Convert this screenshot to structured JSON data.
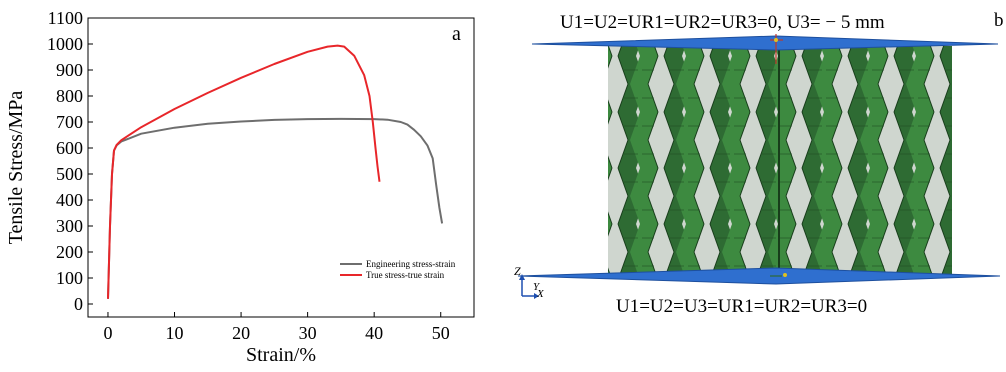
{
  "chart_data": {
    "type": "line",
    "panel_label": "a",
    "xlabel": "Strain/%",
    "ylabel": "Tensile Stress/MPa",
    "xlim": [
      -3,
      55
    ],
    "ylim": [
      -50,
      1100
    ],
    "x_ticks": [
      0,
      10,
      20,
      30,
      40,
      50
    ],
    "y_ticks": [
      0,
      100,
      200,
      300,
      400,
      500,
      600,
      700,
      800,
      900,
      1000,
      1100
    ],
    "grid": false,
    "legend_position": "lower-right",
    "series": [
      {
        "name": "Engineering stress-strain",
        "color": "#6e6e6e",
        "x": [
          0,
          0.3,
          0.6,
          0.9,
          1.3,
          2,
          5,
          10,
          15,
          20,
          25,
          30,
          35,
          40,
          42,
          44,
          45,
          46,
          47,
          48,
          48.8,
          49.3,
          49.8,
          50.2
        ],
        "y": [
          20,
          300,
          500,
          590,
          610,
          625,
          655,
          678,
          693,
          702,
          708,
          711,
          712,
          711,
          709,
          700,
          690,
          670,
          645,
          610,
          560,
          460,
          370,
          310
        ]
      },
      {
        "name": "True stress-true strain",
        "color": "#e8262a",
        "x": [
          0,
          0.3,
          0.6,
          0.9,
          1.3,
          2,
          5,
          10,
          15,
          20,
          25,
          30,
          33,
          34.5,
          35.5,
          37,
          38.5,
          39.3,
          39.8,
          40.2,
          40.5,
          40.8
        ],
        "y": [
          20,
          300,
          500,
          590,
          612,
          630,
          680,
          750,
          812,
          870,
          923,
          970,
          990,
          994,
          990,
          955,
          880,
          800,
          700,
          600,
          530,
          470
        ]
      }
    ]
  },
  "panel_b": {
    "label": "b",
    "top_bc": "U1=U2=UR1=UR2=UR3=0, U3= − 5 mm",
    "bottom_bc": "U1=U2=U3=UR1=UR2=UR3=0",
    "axis_z": "Z",
    "axis_x": "X",
    "axis_y": "Y",
    "plate_color": "#2f6fcf",
    "lattice_color": "#2e6b33"
  }
}
